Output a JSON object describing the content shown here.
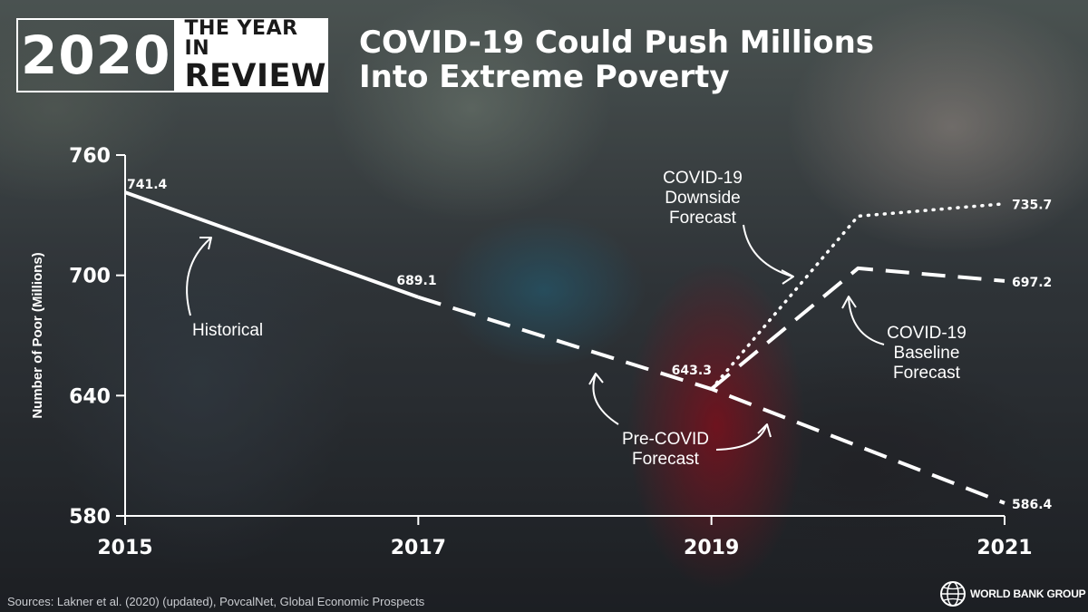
{
  "badge": {
    "year": "2020",
    "line1": "THE YEAR IN",
    "line2": "REVIEW"
  },
  "title": {
    "line1": "COVID-19 Could Push Millions",
    "line2": "Into Extreme Poverty"
  },
  "source": "Sources: Lakner et al. (2020) (updated), PovcalNet, Global Economic Prospects",
  "logo": {
    "icon": "globe-icon",
    "text": "WORLD BANK GROUP"
  },
  "colors": {
    "text": "#ffffff",
    "line": "#ffffff"
  },
  "chart_data": {
    "type": "line",
    "title": "COVID-19 Could Push Millions Into Extreme Poverty",
    "xlabel": "",
    "ylabel": "Number of Poor (Millions)",
    "xlim": [
      2015,
      2021
    ],
    "ylim": [
      580,
      760
    ],
    "x_ticks": [
      "2015",
      "2017",
      "2019",
      "2021"
    ],
    "y_ticks": [
      "580",
      "640",
      "700",
      "760"
    ],
    "series": [
      {
        "name": "Historical",
        "style": "solid",
        "points": [
          {
            "x": 2015,
            "y": 741.4,
            "label": "741.4"
          },
          {
            "x": 2017,
            "y": 689.1,
            "label": "689.1"
          }
        ]
      },
      {
        "name": "Pre-COVID Forecast",
        "style": "dashed",
        "points": [
          {
            "x": 2017,
            "y": 689.1
          },
          {
            "x": 2019,
            "y": 643.3,
            "label": "643.3"
          },
          {
            "x": 2021,
            "y": 586.4,
            "label": "586.4"
          }
        ]
      },
      {
        "name": "COVID-19 Baseline Forecast",
        "style": "dashed",
        "points": [
          {
            "x": 2019,
            "y": 643.3
          },
          {
            "x": 2020,
            "y": 703.5
          },
          {
            "x": 2021,
            "y": 697.2,
            "label": "697.2"
          }
        ]
      },
      {
        "name": "COVID-19 Downside Forecast",
        "style": "dotted",
        "points": [
          {
            "x": 2019,
            "y": 643.3
          },
          {
            "x": 2020,
            "y": 729.5
          },
          {
            "x": 2021,
            "y": 735.7,
            "label": "735.7"
          }
        ]
      }
    ],
    "annotations": [
      {
        "id": "historical",
        "lines": [
          "Historical"
        ]
      },
      {
        "id": "downside",
        "lines": [
          "COVID-19",
          "Downside",
          "Forecast"
        ]
      },
      {
        "id": "baseline",
        "lines": [
          "COVID-19",
          "Baseline",
          "Forecast"
        ]
      },
      {
        "id": "precovid",
        "lines": [
          "Pre-COVID",
          "Forecast"
        ]
      }
    ]
  }
}
